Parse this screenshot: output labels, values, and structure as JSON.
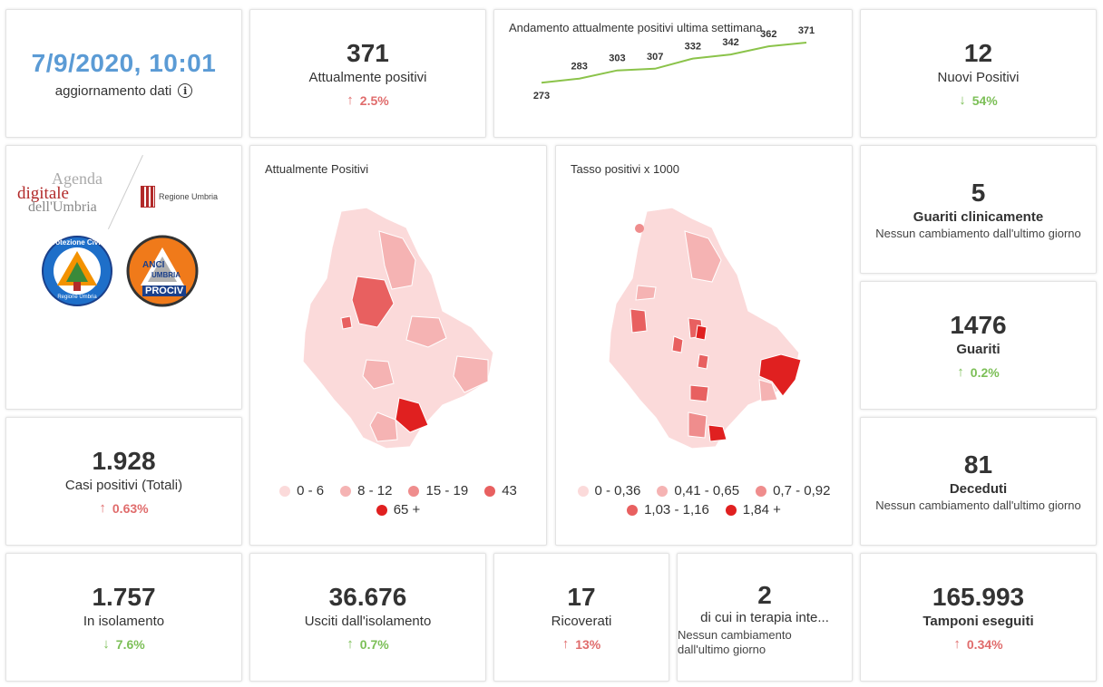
{
  "update": {
    "date": "7/9/2020, 10:01",
    "label": "aggiornamento dati",
    "info_icon": "info-icon"
  },
  "attualmente_positivi": {
    "value": "371",
    "label": "Attualmente positivi",
    "delta": "2.5%",
    "direction": "up"
  },
  "trend": {
    "title": "Andamento attualmente positivi ultima settimana",
    "chart_data": {
      "type": "line",
      "x": [
        1,
        2,
        3,
        4,
        5,
        6,
        7,
        8
      ],
      "values": [
        273,
        283,
        303,
        307,
        332,
        342,
        362,
        371
      ],
      "labels": [
        "273",
        "283",
        "303",
        "307",
        "332",
        "342",
        "362",
        "371"
      ],
      "color": "#8bc34a"
    }
  },
  "nuovi_positivi": {
    "value": "12",
    "label": "Nuovi Positivi",
    "delta": "54%",
    "direction": "down"
  },
  "logos": {
    "agenda_1": "Agenda",
    "agenda_2": "digitale",
    "agenda_3": "dell'Umbria",
    "regione": "Regione Umbria",
    "protezione": "Protezione Civile",
    "protezione_sub": "Regione Umbria",
    "anci_1": "ANCI",
    "anci_2": "UMBRIA",
    "anci_3": "PROCIV"
  },
  "map1": {
    "title": "Attualmente Positivi",
    "legend": [
      {
        "label": "0 - 6",
        "color": "#fbdada"
      },
      {
        "label": "8 - 12",
        "color": "#f5b3b3"
      },
      {
        "label": "15 - 19",
        "color": "#ef8d8d"
      },
      {
        "label": "43",
        "color": "#e86060"
      },
      {
        "label": "65 +",
        "color": "#e02020"
      }
    ]
  },
  "map2": {
    "title": "Tasso positivi x 1000",
    "legend": [
      {
        "label": "0 - 0,36",
        "color": "#fbdada"
      },
      {
        "label": "0,41 - 0,65",
        "color": "#f5b3b3"
      },
      {
        "label": "0,7 - 0,92",
        "color": "#ef8d8d"
      },
      {
        "label": "1,03 - 1,16",
        "color": "#e86060"
      },
      {
        "label": "1,84 +",
        "color": "#e02020"
      }
    ]
  },
  "guariti_clinicamente": {
    "value": "5",
    "label": "Guariti clinicamente",
    "note": "Nessun cambiamento dall'ultimo giorno"
  },
  "guariti": {
    "value": "1476",
    "label": "Guariti",
    "delta": "0.2%",
    "direction": "up"
  },
  "casi_totali": {
    "value": "1.928",
    "label": "Casi positivi (Totali)",
    "delta": "0.63%",
    "direction": "up"
  },
  "deceduti": {
    "value": "81",
    "label": "Deceduti",
    "note": "Nessun cambiamento dall'ultimo giorno"
  },
  "isolamento": {
    "value": "1.757",
    "label": "In isolamento",
    "delta": "7.6%",
    "direction": "down"
  },
  "usciti": {
    "value": "36.676",
    "label": "Usciti dall'isolamento",
    "delta": "0.7%",
    "direction": "up"
  },
  "ricoverati": {
    "value": "17",
    "label": "Ricoverati",
    "delta": "13%",
    "direction": "up"
  },
  "terapia": {
    "value": "2",
    "label": "di cui in terapia inte...",
    "note": "Nessun cambiamento dall'ultimo giorno"
  },
  "tamponi": {
    "value": "165.993",
    "label": "Tamponi eseguiti",
    "delta": "0.34%",
    "direction": "up"
  },
  "arrows": {
    "up": "↑",
    "down": "↓"
  }
}
